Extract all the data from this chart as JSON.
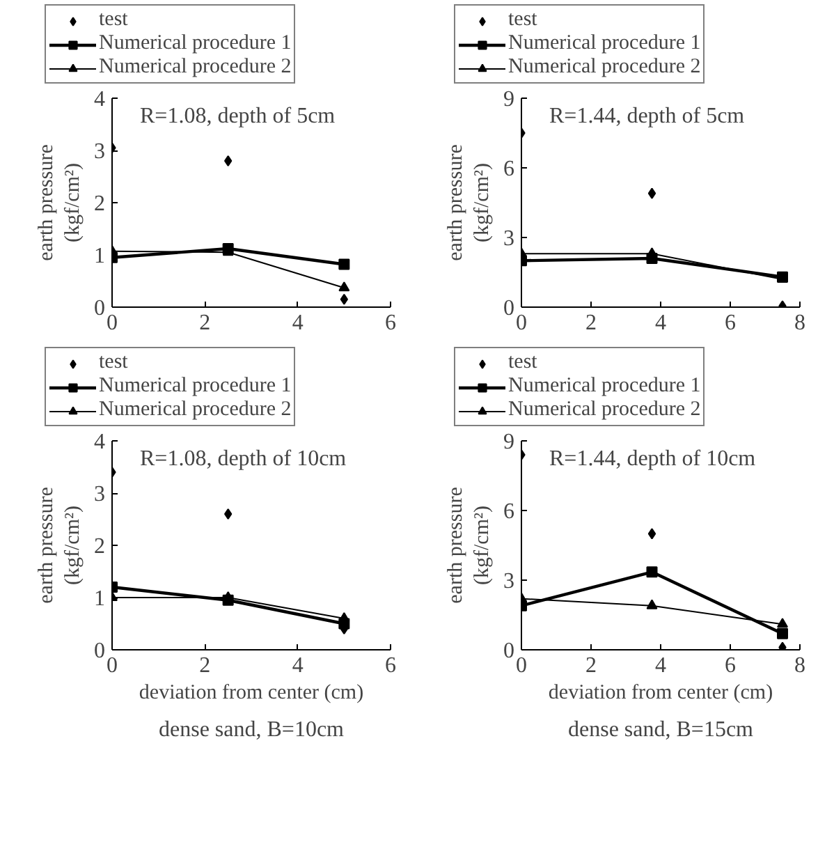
{
  "chart_data": [
    {
      "type": "line",
      "ylabel": "earth pressure\n(kgf/cm²)",
      "x": [
        0,
        2.5,
        5
      ],
      "xlim": [
        0,
        6
      ],
      "xticks": [
        0,
        2,
        4,
        6
      ],
      "ylim": [
        0,
        4
      ],
      "yticks": [
        0,
        1,
        2,
        3,
        4
      ],
      "grid": false,
      "legend": "top",
      "tick_labels": true,
      "annotations": [
        "R=1.08, depth of 5cm"
      ],
      "series": [
        {
          "name": "test",
          "type": "scatter",
          "marker": "diamond",
          "color": "#000000",
          "values": [
            3.05,
            2.8,
            0.15
          ]
        },
        {
          "name": "Numerical procedure 1",
          "type": "line",
          "marker": "square",
          "color": "#000000",
          "values": [
            0.95,
            1.12,
            0.82
          ]
        },
        {
          "name": "Numerical procedure 2",
          "type": "line",
          "marker": "triangle",
          "color": "#000000",
          "values": [
            1.07,
            1.05,
            0.37
          ]
        }
      ]
    },
    {
      "type": "line",
      "ylabel": "earth pressure\n(kgf/cm²)",
      "x": [
        0,
        3.75,
        7.5
      ],
      "xlim": [
        0,
        8
      ],
      "xticks": [
        0,
        2,
        4,
        6,
        8
      ],
      "ylim": [
        0,
        9
      ],
      "yticks": [
        0,
        3,
        6,
        9
      ],
      "grid": false,
      "legend": "top",
      "annotations": [
        "R=1.44, depth of 5cm"
      ],
      "series": [
        {
          "name": "test",
          "type": "scatter",
          "marker": "diamond",
          "color": "#000000",
          "values": [
            7.5,
            4.9,
            0.05
          ]
        },
        {
          "name": "Numerical procedure 1",
          "type": "line",
          "marker": "square",
          "color": "#000000",
          "values": [
            2.0,
            2.1,
            1.3
          ]
        },
        {
          "name": "Numerical procedure 2",
          "type": "line",
          "marker": "triangle",
          "color": "#000000",
          "values": [
            2.3,
            2.3,
            1.2
          ]
        }
      ]
    },
    {
      "type": "line",
      "xlabel": "deviation from center (cm)",
      "ylabel": "earth pressure\n(kgf/cm²)",
      "subtitle": "dense sand, B=10cm",
      "x": [
        0,
        2.5,
        5
      ],
      "xlim": [
        0,
        6
      ],
      "xticks": [
        0,
        2,
        4,
        6
      ],
      "ylim": [
        0,
        4
      ],
      "yticks": [
        0,
        1,
        2,
        3,
        4
      ],
      "grid": false,
      "legend": "top",
      "annotations": [
        "R=1.08, depth of 10cm"
      ],
      "series": [
        {
          "name": "test",
          "type": "scatter",
          "marker": "diamond",
          "color": "#000000",
          "values": [
            3.4,
            2.6,
            0.4
          ]
        },
        {
          "name": "Numerical procedure 1",
          "type": "line",
          "marker": "square",
          "color": "#000000",
          "values": [
            1.2,
            0.95,
            0.5
          ]
        },
        {
          "name": "Numerical procedure 2",
          "type": "line",
          "marker": "triangle",
          "color": "#000000",
          "values": [
            1.0,
            1.0,
            0.6
          ]
        }
      ]
    },
    {
      "type": "line",
      "xlabel": "deviation from center (cm)",
      "ylabel": "earth pressure\n(kgf/cm²)",
      "subtitle": "dense sand, B=15cm",
      "x": [
        0,
        3.75,
        7.5
      ],
      "xlim": [
        0,
        8
      ],
      "xticks": [
        0,
        2,
        4,
        6,
        8
      ],
      "ylim": [
        0,
        9
      ],
      "yticks": [
        0,
        3,
        6,
        9
      ],
      "grid": false,
      "legend": "top",
      "annotations": [
        "R=1.44, depth of 10cm"
      ],
      "series": [
        {
          "name": "test",
          "type": "scatter",
          "marker": "diamond",
          "color": "#000000",
          "values": [
            8.4,
            5.0,
            0.1
          ]
        },
        {
          "name": "Numerical procedure 1",
          "type": "line",
          "marker": "square",
          "color": "#000000",
          "values": [
            1.9,
            3.35,
            0.7
          ]
        },
        {
          "name": "Numerical procedure 2",
          "type": "line",
          "marker": "triangle",
          "color": "#000000",
          "values": [
            2.2,
            1.9,
            1.1
          ]
        }
      ]
    }
  ]
}
